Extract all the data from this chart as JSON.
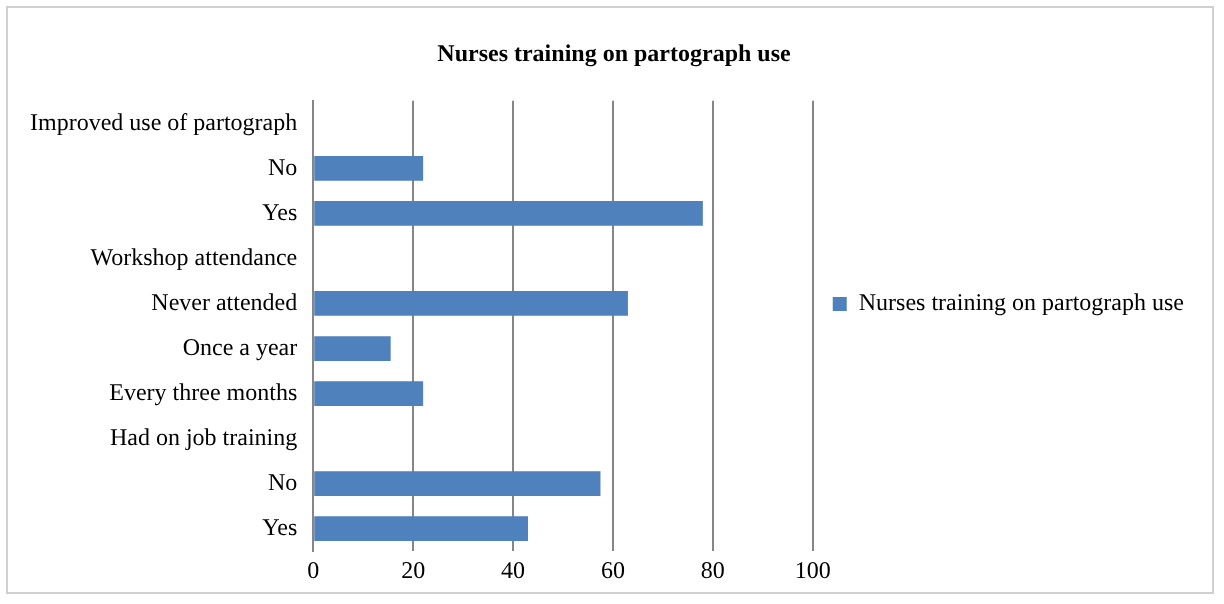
{
  "chart_data": {
    "type": "bar",
    "orientation": "horizontal",
    "title": "Nurses training on partograph use",
    "categories": [
      "Improved use of partograph",
      "No",
      "Yes",
      "Workshop attendance",
      "Never attended",
      "Once a year",
      "Every three months",
      "Had on job training",
      "No",
      "Yes"
    ],
    "series": [
      {
        "name": "Nurses training on partograph use",
        "color": "#4f81bd",
        "values": [
          null,
          22,
          78,
          null,
          63,
          15.5,
          22,
          null,
          57.5,
          43
        ]
      }
    ],
    "xlim": [
      0,
      100
    ],
    "xticks": [
      0,
      20,
      40,
      60,
      80,
      100
    ],
    "grid": "x",
    "legend": "right"
  }
}
